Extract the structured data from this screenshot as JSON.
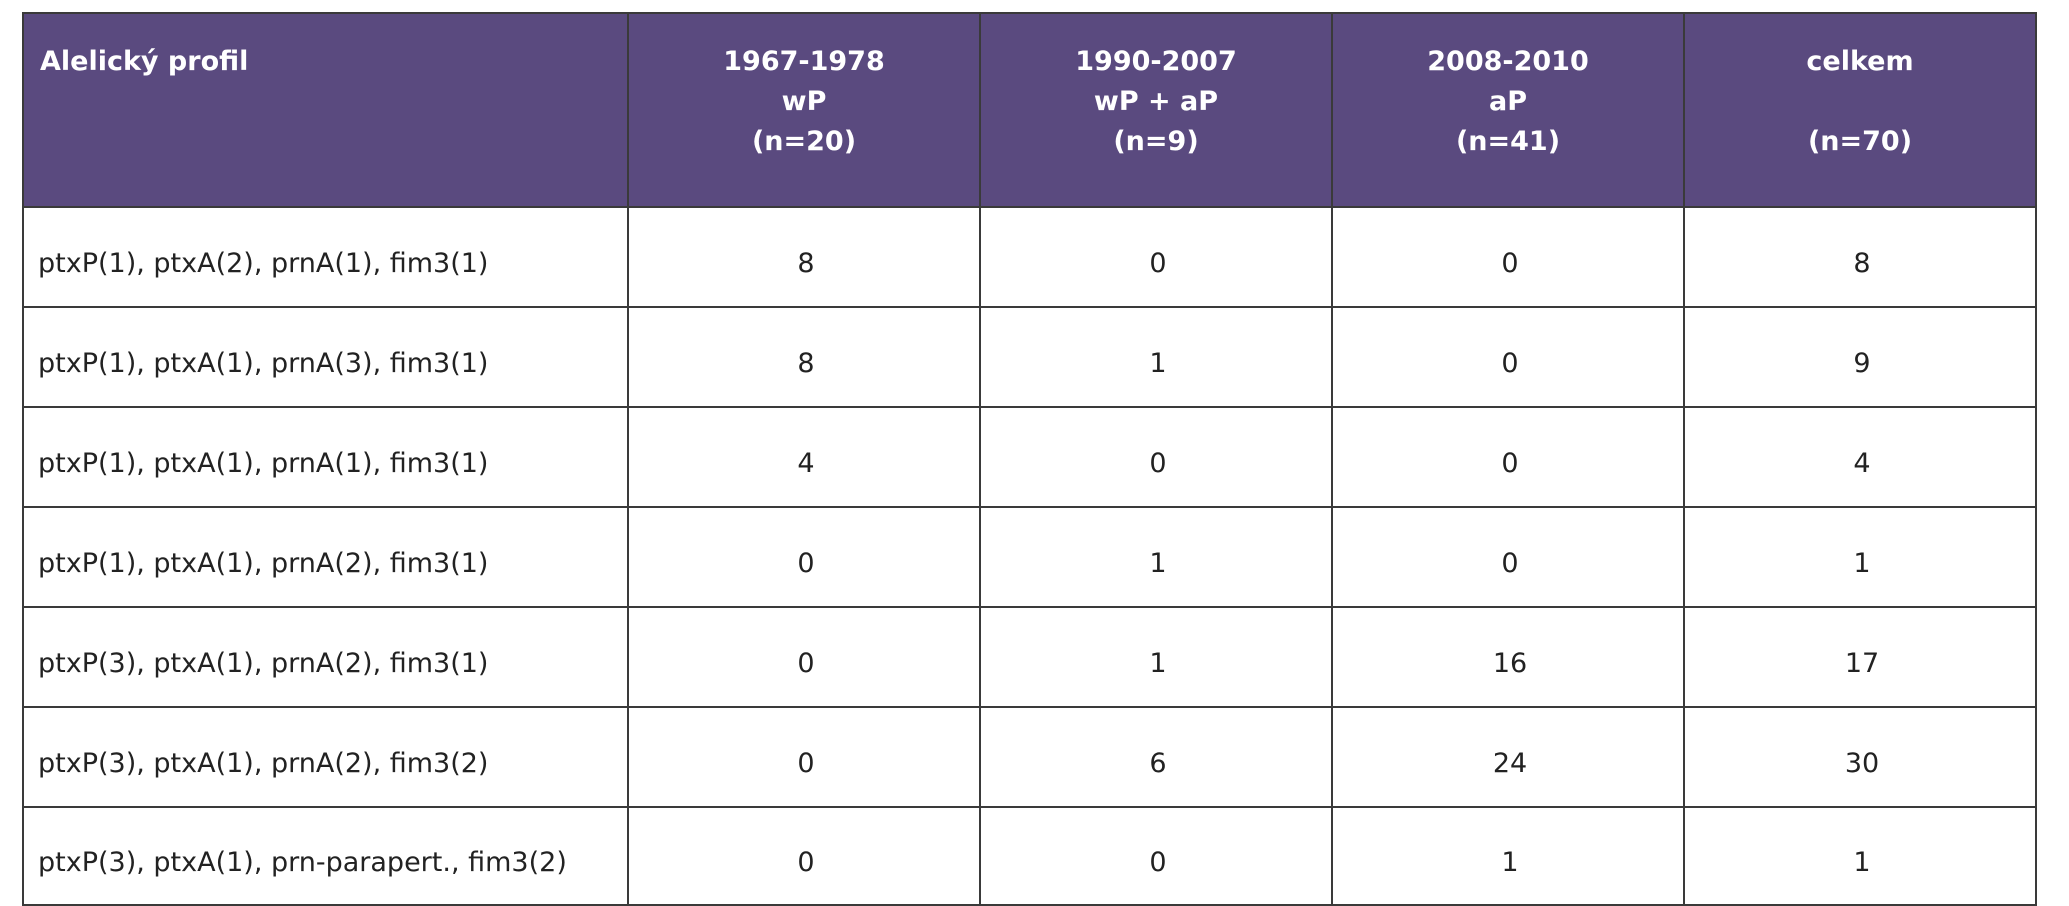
{
  "table": {
    "headers": [
      {
        "lines": [
          "Alelický profil"
        ]
      },
      {
        "lines": [
          "1967-1978",
          "wP",
          "(n=20)"
        ]
      },
      {
        "lines": [
          "1990-2007",
          "wP + aP",
          "(n=9)"
        ]
      },
      {
        "lines": [
          "2008-2010",
          "aP",
          "(n=41)"
        ]
      },
      {
        "lines": [
          "celkem",
          "",
          "(n=70)"
        ]
      }
    ],
    "rows": [
      [
        "ptxP(1), ptxA(2), prnA(1), fim3(1)",
        "8",
        "0",
        "0",
        "8"
      ],
      [
        "ptxP(1), ptxA(1), prnA(3), fim3(1)",
        "8",
        "1",
        "0",
        "9"
      ],
      [
        "ptxP(1), ptxA(1), prnA(1), fim3(1)",
        "4",
        "0",
        "0",
        "4"
      ],
      [
        "ptxP(1), ptxA(1), prnA(2), fim3(1)",
        "0",
        "1",
        "0",
        "1"
      ],
      [
        "ptxP(3), ptxA(1), prnA(2), fim3(1)",
        "0",
        "1",
        "16",
        "17"
      ],
      [
        "ptxP(3), ptxA(1), prnA(2), fim3(2)",
        "0",
        "6",
        "24",
        "30"
      ],
      [
        "ptxP(3), ptxA(1), prn-parapert., fim3(2)",
        "0",
        "0",
        "1",
        "1"
      ]
    ]
  },
  "colors": {
    "header_background": "#5a4a7f",
    "header_text": "#ffffff",
    "border": "#3a3a3a"
  }
}
